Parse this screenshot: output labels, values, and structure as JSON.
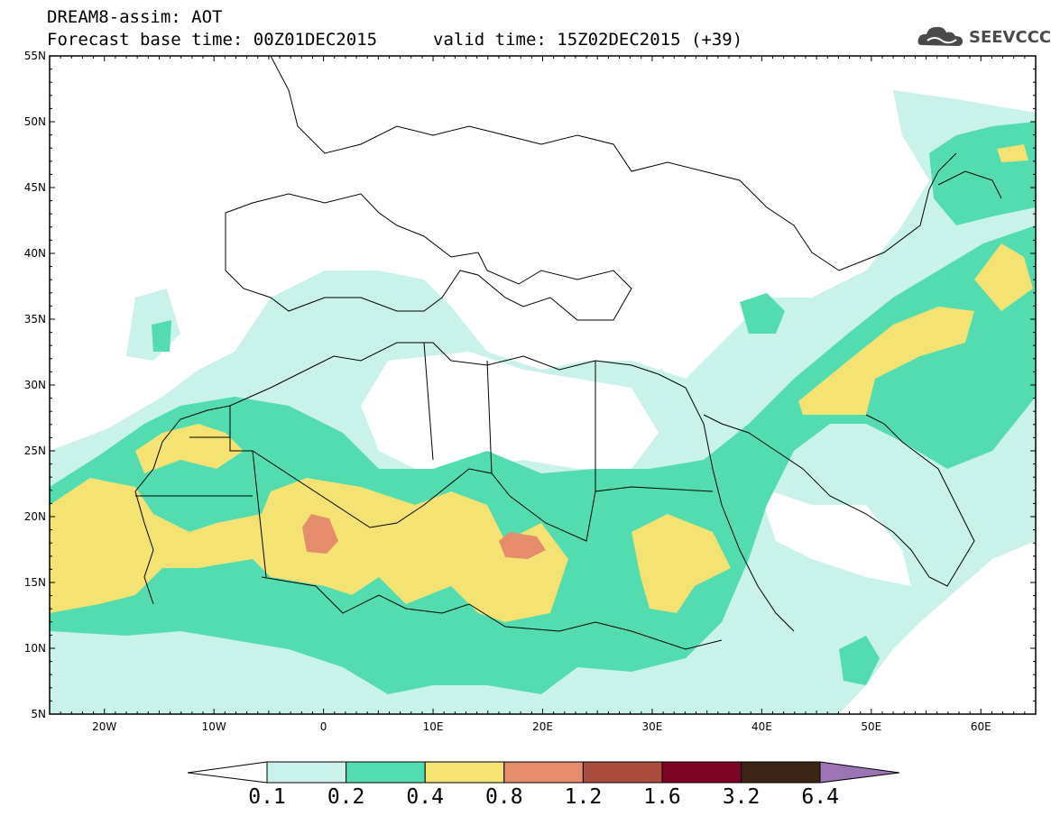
{
  "header": {
    "line1": "DREAM8-assim: AOT",
    "line2": "Forecast base time: 00Z01DEC2015",
    "line3": "valid time: 15Z02DEC2015 (+39)"
  },
  "logo": {
    "text": "SEEVCCC",
    "icon": "cloud-logo-icon"
  },
  "map": {
    "lat_labels": [
      "55N",
      "50N",
      "45N",
      "40N",
      "35N",
      "30N",
      "25N",
      "20N",
      "15N",
      "10N",
      "5N"
    ],
    "lon_labels": [
      "20W",
      "10W",
      "0",
      "10E",
      "20E",
      "30E",
      "40E",
      "50E",
      "60E"
    ],
    "lon_range": [
      -25,
      65
    ],
    "lat_range": [
      5,
      55
    ],
    "colors": {
      "c1": "#c8f2ea",
      "c2": "#52dcb0",
      "c3": "#f4e272",
      "c4": "#e48c6c",
      "c5": "#a84c3c",
      "c6": "#7c0424",
      "c7": "#3c2414",
      "c8": "#9c74b4",
      "border": "#000000"
    }
  },
  "colorbar": {
    "labels": [
      "0.1",
      "0.2",
      "0.4",
      "0.8",
      "1.2",
      "1.6",
      "3.2",
      "6.4"
    ]
  }
}
